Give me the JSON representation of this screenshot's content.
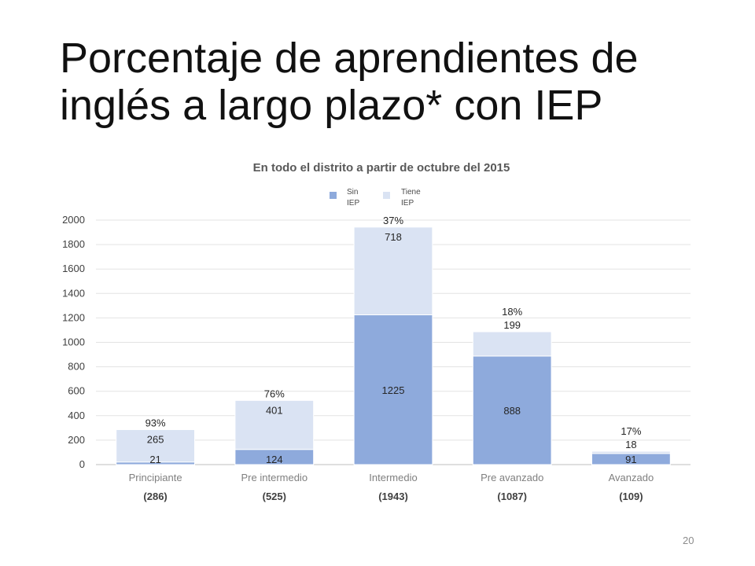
{
  "slide": {
    "title_lines": [
      "Porcentaje de aprendientes de",
      "inglés a largo plazo* con IEP"
    ],
    "page_number": "20"
  },
  "chart_data": {
    "type": "bar",
    "stacked": true,
    "title": "En todo el distrito a partir de octubre del 2015",
    "categories": [
      "Principiante",
      "Pre intermedio",
      "Intermedio",
      "Pre avanzado",
      "Avanzado"
    ],
    "category_totals": [
      "(286)",
      "(525)",
      "(1943)",
      "(1087)",
      "(109)"
    ],
    "series": [
      {
        "name_lines": [
          "Sin",
          "IEP"
        ],
        "color": "#8eaadc",
        "values": [
          21,
          124,
          1225,
          888,
          91
        ]
      },
      {
        "name_lines": [
          "Tiene",
          "IEP"
        ],
        "color": "#dae3f3",
        "values": [
          265,
          401,
          718,
          199,
          18
        ]
      }
    ],
    "percent_labels": [
      "93%",
      "76%",
      "37%",
      "18%",
      "17%"
    ],
    "ylim": [
      0,
      2000
    ],
    "yticks": [
      0,
      200,
      400,
      600,
      800,
      1000,
      1200,
      1400,
      1600,
      1800,
      2000
    ],
    "grid": true,
    "legend_position": "top-center"
  }
}
